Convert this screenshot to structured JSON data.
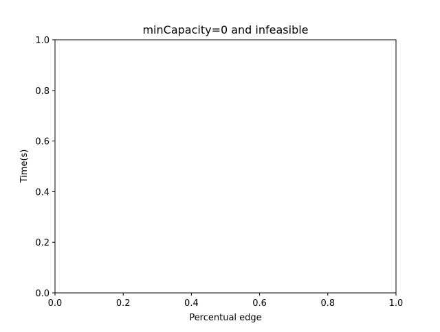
{
  "chart_data": {
    "type": "line",
    "title": "minCapacity=0 and infeasible",
    "xlabel": "Percentual edge",
    "ylabel": "Time(s)",
    "xlim": [
      0.0,
      1.0
    ],
    "ylim": [
      0.0,
      1.0
    ],
    "xticks": [
      "0.0",
      "0.2",
      "0.4",
      "0.6",
      "0.8",
      "1.0"
    ],
    "yticks": [
      "0.0",
      "0.2",
      "0.4",
      "0.6",
      "0.8",
      "1.0"
    ],
    "series": [],
    "grid": false,
    "legend": "none"
  }
}
